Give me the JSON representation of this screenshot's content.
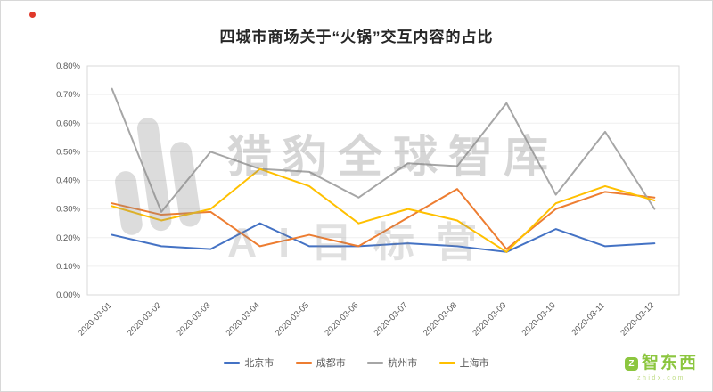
{
  "chart_data": {
    "type": "line",
    "title": "四城市商场关于“火锅”交互内容的占比",
    "x": [
      "2020-03-01",
      "2020-03-02",
      "2020-03-03",
      "2020-03-04",
      "2020-03-05",
      "2020-03-06",
      "2020-03-07",
      "2020-03-08",
      "2020-03-09",
      "2020-03-10",
      "2020-03-11",
      "2020-03-12"
    ],
    "series": [
      {
        "name": "北京市",
        "color": "#4472C4",
        "values": [
          0.21,
          0.17,
          0.16,
          0.25,
          0.17,
          0.17,
          0.18,
          0.17,
          0.15,
          0.23,
          0.17,
          0.18
        ]
      },
      {
        "name": "成都市",
        "color": "#ED7D31",
        "values": [
          0.32,
          0.28,
          0.29,
          0.17,
          0.21,
          0.17,
          0.27,
          0.37,
          0.16,
          0.3,
          0.36,
          0.34
        ]
      },
      {
        "name": "杭州市",
        "color": "#A6A6A6",
        "values": [
          0.72,
          0.29,
          0.5,
          0.44,
          0.43,
          0.34,
          0.46,
          0.45,
          0.67,
          0.35,
          0.57,
          0.3
        ]
      },
      {
        "name": "上海市",
        "color": "#FFC000",
        "values": [
          0.31,
          0.26,
          0.3,
          0.44,
          0.38,
          0.25,
          0.3,
          0.26,
          0.15,
          0.32,
          0.38,
          0.33
        ]
      }
    ],
    "ylim": [
      0,
      0.8
    ],
    "ytick_step": 0.1,
    "yticks_labels": [
      "0.00%",
      "0.10%",
      "0.20%",
      "0.30%",
      "0.40%",
      "0.50%",
      "0.60%",
      "0.70%",
      "0.80%"
    ],
    "grid": true,
    "legend_position": "bottom",
    "xlabel": "",
    "ylabel": ""
  },
  "watermark": {
    "line1": "猎豹全球智库",
    "line2": "AI目标营"
  },
  "brand": {
    "name": "智东西",
    "subtext": "zhidx.com",
    "color": "#8CC63F",
    "sub_color": "#BFDC84"
  },
  "decorations": {
    "red_dot_color": "#E0392B"
  }
}
